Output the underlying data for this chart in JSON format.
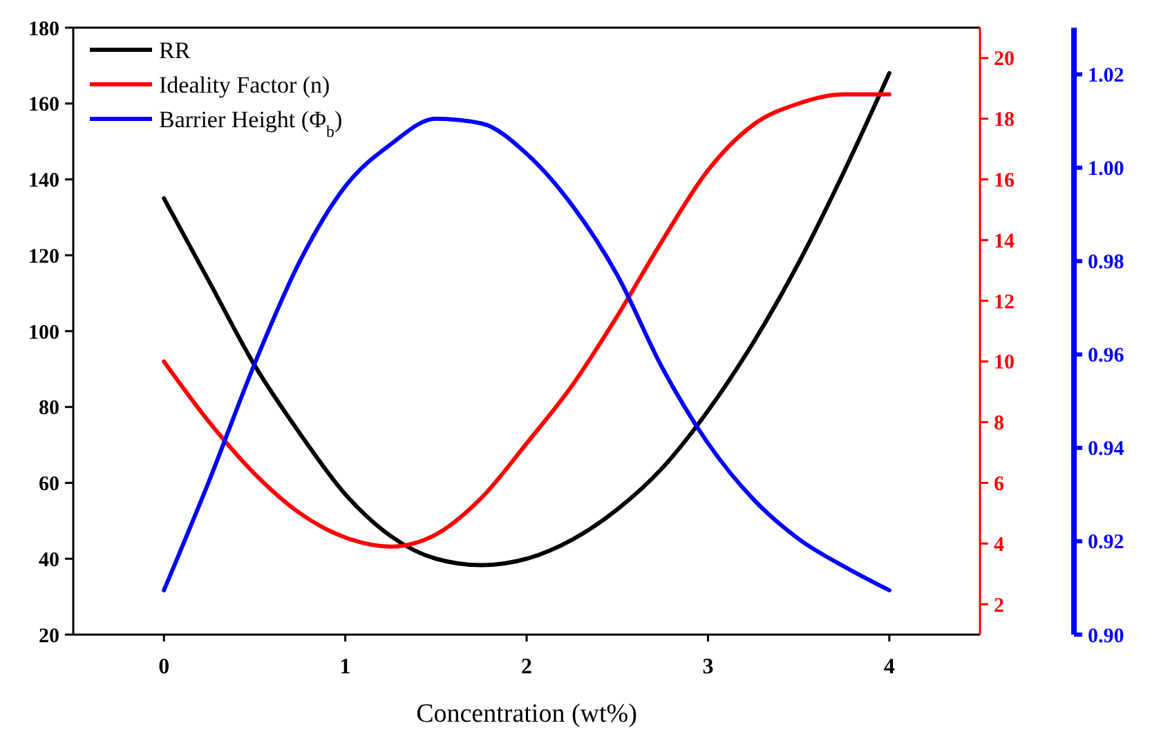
{
  "chart_data": {
    "type": "line",
    "xlabel": "Concentration (wt%)",
    "x": [
      0,
      0.25,
      0.5,
      0.75,
      1,
      1.25,
      1.5,
      1.75,
      2,
      2.25,
      2.5,
      2.75,
      3,
      3.25,
      3.5,
      3.75,
      4
    ],
    "xlim": [
      -0.5,
      4.5
    ],
    "xticks": [
      0,
      1,
      2,
      3,
      4
    ],
    "ylim": [
      20,
      180
    ],
    "yticks": [
      20,
      40,
      60,
      80,
      100,
      120,
      140,
      160,
      180
    ],
    "y2lim": [
      1,
      21
    ],
    "y2ticks": [
      2,
      4,
      6,
      8,
      10,
      12,
      14,
      16,
      18,
      20
    ],
    "y3lim": [
      0.9,
      1.03
    ],
    "y3ticks": [
      {
        "value": 0.9,
        "label": "0.90"
      },
      {
        "value": 0.92,
        "label": "0.92"
      },
      {
        "value": 0.94,
        "label": "0.94"
      },
      {
        "value": 0.96,
        "label": "0.96"
      },
      {
        "value": 0.98,
        "label": "0.98"
      },
      {
        "value": 1.0,
        "label": "1.00"
      },
      {
        "value": 1.02,
        "label": "1.02"
      }
    ],
    "legend": "top left",
    "grid": false,
    "marker": "none",
    "line_style": "solid",
    "series": [
      {
        "name": "RR",
        "color": "#000000",
        "values": [
          135,
          113,
          91,
          73,
          57,
          46,
          40,
          38.3,
          40,
          45,
          53,
          64,
          79,
          97,
          118,
          142,
          168
        ]
      },
      {
        "name": "Ideality Factor (n)",
        "color": "#ff0000",
        "axis": "y2",
        "values": [
          10,
          8,
          6.3,
          5,
          4.2,
          3.9,
          4.3,
          5.5,
          7.3,
          9.2,
          11.5,
          14,
          16.3,
          17.8,
          18.5,
          18.8,
          18.8
        ]
      },
      {
        "name": "Barrier Height (Φ$_{b}$)",
        "color": "#0000ff",
        "axis": "y3",
        "values": [
          0.9095,
          0.933,
          0.958,
          0.98,
          0.996,
          1.005,
          1.0105,
          1.0095,
          1.003,
          0.992,
          0.977,
          0.957,
          0.941,
          0.929,
          0.9205,
          0.9146,
          0.9095
        ]
      }
    ]
  }
}
